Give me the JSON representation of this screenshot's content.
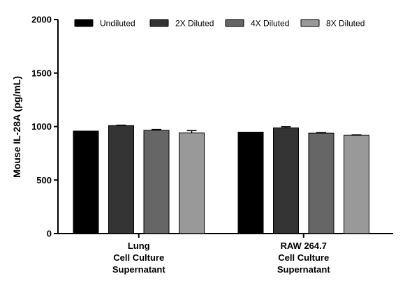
{
  "chart_data": {
    "type": "bar",
    "title": "",
    "xlabel": "",
    "ylabel": "Mouse IL-28A (pg/mL)",
    "ylim": [
      0,
      2000
    ],
    "yticks": [
      0,
      500,
      1000,
      1500,
      2000
    ],
    "categories": [
      [
        "Lung",
        "Cell Culture",
        "Supernatant"
      ],
      [
        "RAW 264.7",
        "Cell Culture",
        "Supernatant"
      ]
    ],
    "series": [
      {
        "name": "Undiluted",
        "values": [
          958,
          948
        ],
        "errors": [
          0,
          0
        ]
      },
      {
        "name": "2X Diluted",
        "values": [
          1010,
          988
        ],
        "errors": [
          3,
          10
        ]
      },
      {
        "name": "4X Diluted",
        "values": [
          965,
          938
        ],
        "errors": [
          8,
          6
        ]
      },
      {
        "name": "8X Diluted",
        "values": [
          940,
          918
        ],
        "errors": [
          22,
          5
        ]
      }
    ],
    "legend_position": "top",
    "grid": false,
    "colors": [
      "#000000",
      "#333333",
      "#666666",
      "#999999"
    ]
  }
}
